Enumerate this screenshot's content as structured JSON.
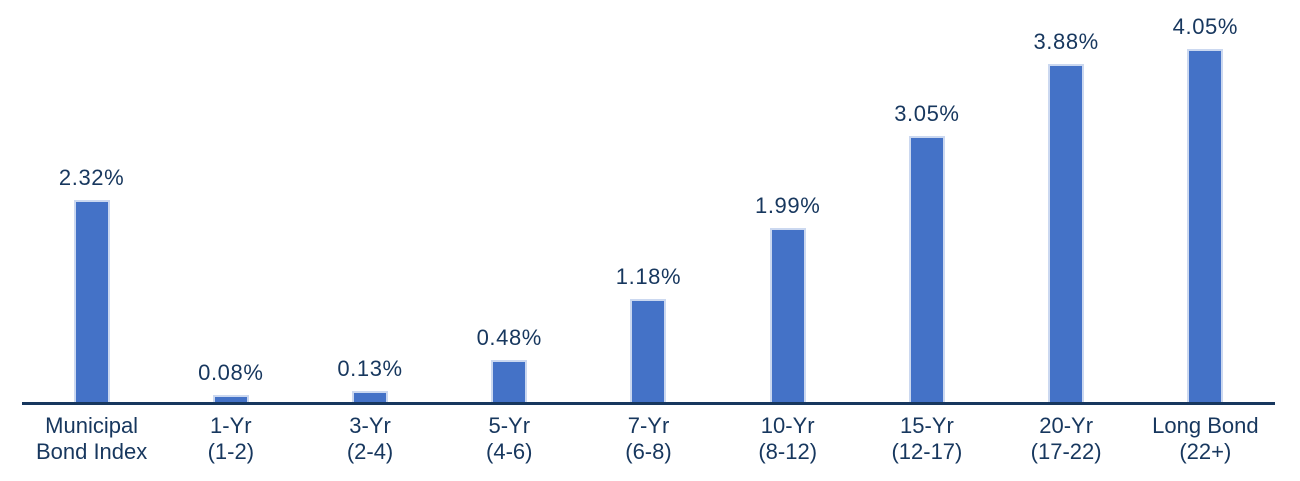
{
  "chart_data": {
    "type": "bar",
    "title": "",
    "xlabel": "",
    "ylabel": "",
    "categories": [
      [
        "Municipal",
        "Bond Index"
      ],
      [
        "1-Yr",
        "(1-2)"
      ],
      [
        "3-Yr",
        "(2-4)"
      ],
      [
        "5-Yr",
        "(4-6)"
      ],
      [
        "7-Yr",
        "(6-8)"
      ],
      [
        "10-Yr",
        "(8-12)"
      ],
      [
        "15-Yr",
        "(12-17)"
      ],
      [
        "20-Yr",
        "(17-22)"
      ],
      [
        "Long Bond",
        "(22+)"
      ]
    ],
    "values": [
      2.32,
      0.08,
      0.13,
      0.48,
      1.18,
      1.99,
      3.05,
      3.88,
      4.05
    ],
    "value_labels": [
      "2.32%",
      "0.08%",
      "0.13%",
      "0.48%",
      "1.18%",
      "1.99%",
      "3.05%",
      "3.88%",
      "4.05%"
    ],
    "ylim": [
      0,
      4.6
    ],
    "grid": false,
    "legend": "none",
    "colors": {
      "bar_fill": "#4472C7",
      "bar_border": "#CBD8F0",
      "text": "#17375E",
      "axis": "#17375E",
      "background": "#FFFFFF"
    }
  }
}
